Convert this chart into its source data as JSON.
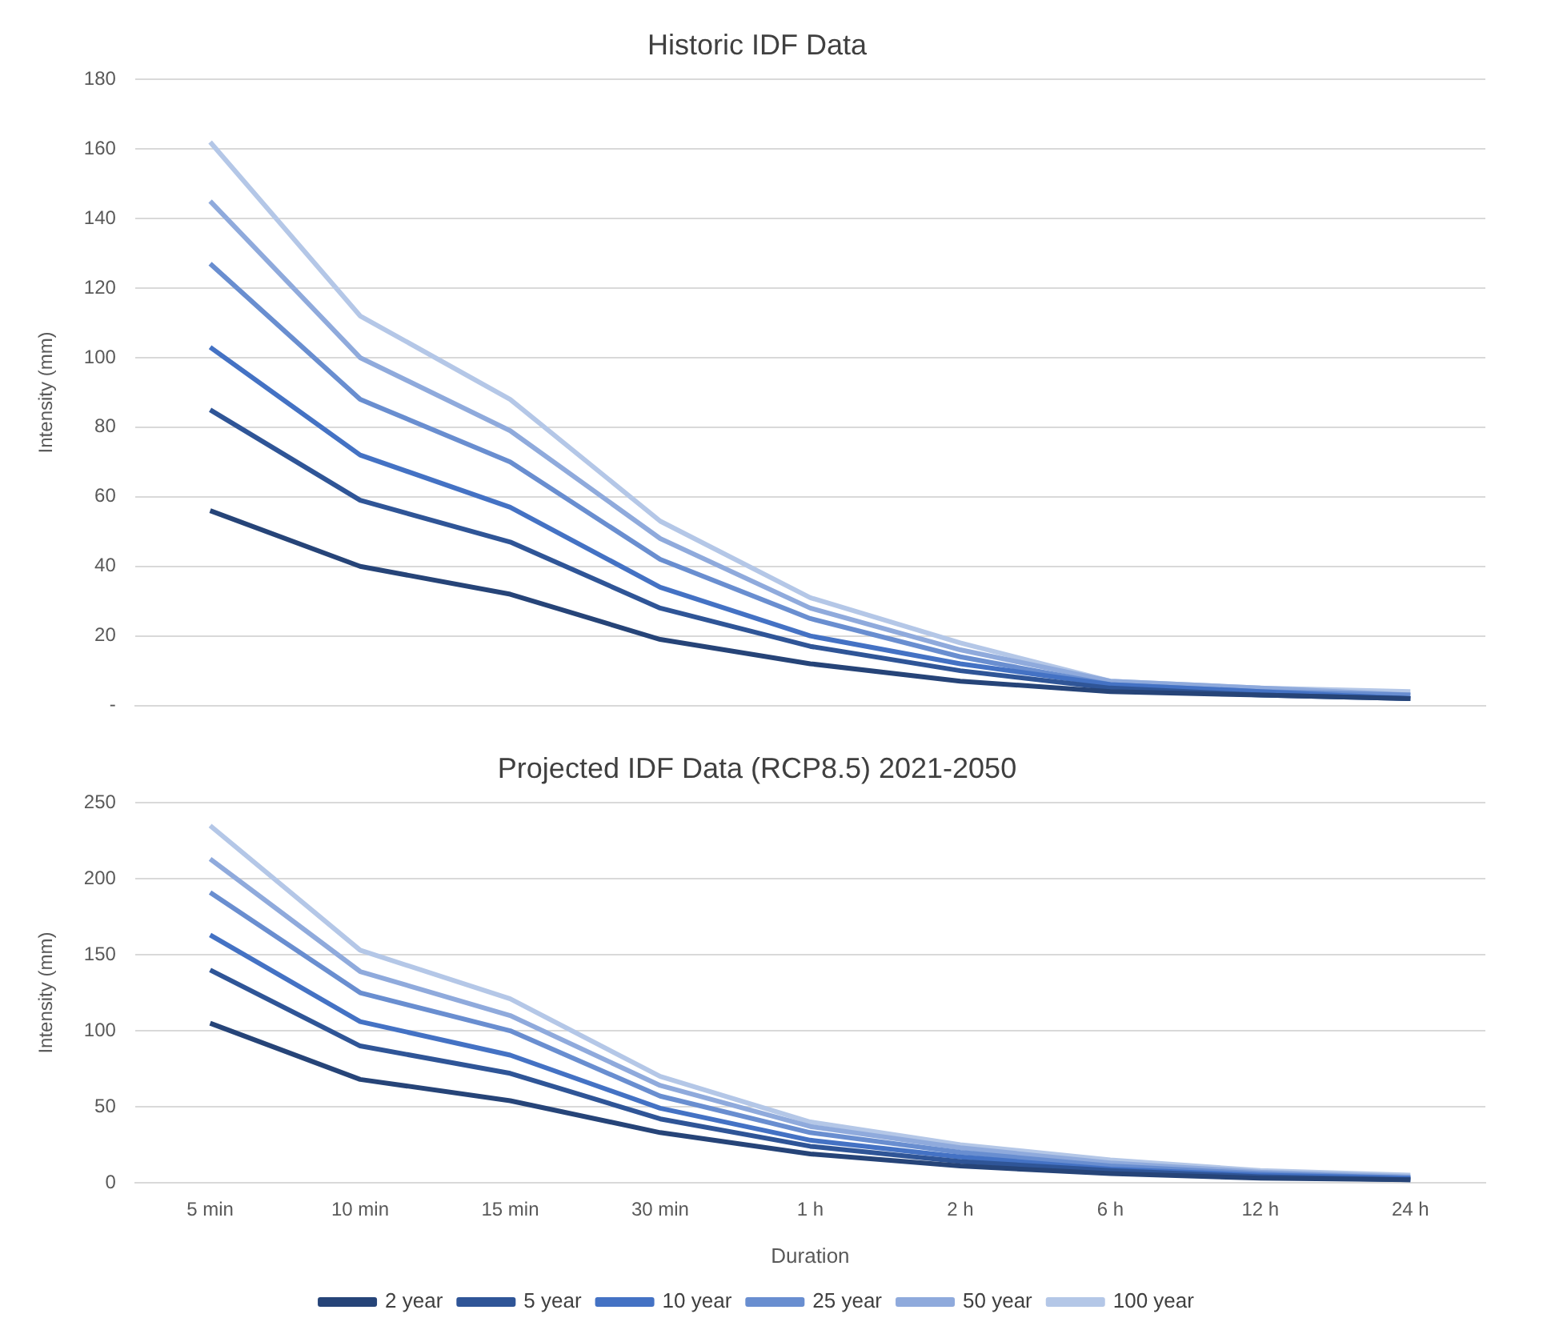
{
  "chart_data": [
    {
      "type": "line",
      "title": "Historic IDF Data",
      "ylabel": "Intensity (mm)",
      "categories": [
        null,
        null,
        null,
        null,
        null,
        null,
        null,
        null,
        null
      ],
      "ylim": [
        0,
        180
      ],
      "yticks": [
        {
          "value": 0,
          "label": "-"
        },
        20,
        40,
        60,
        80,
        100,
        120,
        140,
        160,
        180
      ],
      "grid": "y",
      "legend": false,
      "tick_labels": "y",
      "marker": "none",
      "series": [
        {
          "color": "#264478",
          "values": [
            56,
            40,
            32,
            19,
            12,
            7,
            4,
            3,
            2
          ]
        },
        {
          "color": "#2f5597",
          "values": [
            85,
            59,
            47,
            28,
            17,
            10,
            5,
            3,
            2
          ]
        },
        {
          "color": "#4472c4",
          "values": [
            103,
            72,
            57,
            34,
            20,
            12,
            6,
            4,
            2
          ]
        },
        {
          "color": "#698ed0",
          "values": [
            127,
            88,
            70,
            42,
            25,
            14,
            6,
            4,
            3
          ]
        },
        {
          "color": "#8faadc",
          "values": [
            145,
            100,
            79,
            48,
            28,
            16,
            7,
            5,
            3
          ]
        },
        {
          "color": "#b4c7e7",
          "values": [
            162,
            112,
            88,
            53,
            31,
            18,
            7,
            5,
            4
          ]
        }
      ]
    },
    {
      "type": "line",
      "title": "Projected IDF Data (RCP8.5) 2021-2050",
      "ylabel": "Intensity (mm)",
      "xlabel": "Duration",
      "categories": [
        "5 min",
        "10 min",
        "15 min",
        "30 min",
        "1 h",
        "2 h",
        "6 h",
        "12 h",
        "24 h"
      ],
      "ylim": [
        0,
        250
      ],
      "yticks": [
        0,
        50,
        100,
        150,
        200,
        250
      ],
      "grid": "y",
      "legend": "bottom",
      "marker": "none",
      "series": [
        {
          "name": "2 year",
          "color": "#264478",
          "values": [
            105,
            68,
            54,
            33,
            19,
            11,
            6,
            3,
            2
          ]
        },
        {
          "name": "5 year",
          "color": "#2f5597",
          "values": [
            140,
            90,
            72,
            42,
            24,
            14,
            8,
            4,
            2
          ]
        },
        {
          "name": "10 year",
          "color": "#4472c4",
          "values": [
            163,
            106,
            84,
            49,
            28,
            17,
            9,
            5,
            3
          ]
        },
        {
          "name": "25 year",
          "color": "#698ed0",
          "values": [
            191,
            125,
            100,
            57,
            33,
            20,
            11,
            6,
            3
          ]
        },
        {
          "name": "50 year",
          "color": "#8faadc",
          "values": [
            213,
            139,
            110,
            64,
            37,
            23,
            13,
            7,
            4
          ]
        },
        {
          "name": "100 year",
          "color": "#b4c7e7",
          "values": [
            235,
            153,
            121,
            70,
            40,
            25,
            15,
            8,
            5
          ]
        }
      ]
    }
  ]
}
